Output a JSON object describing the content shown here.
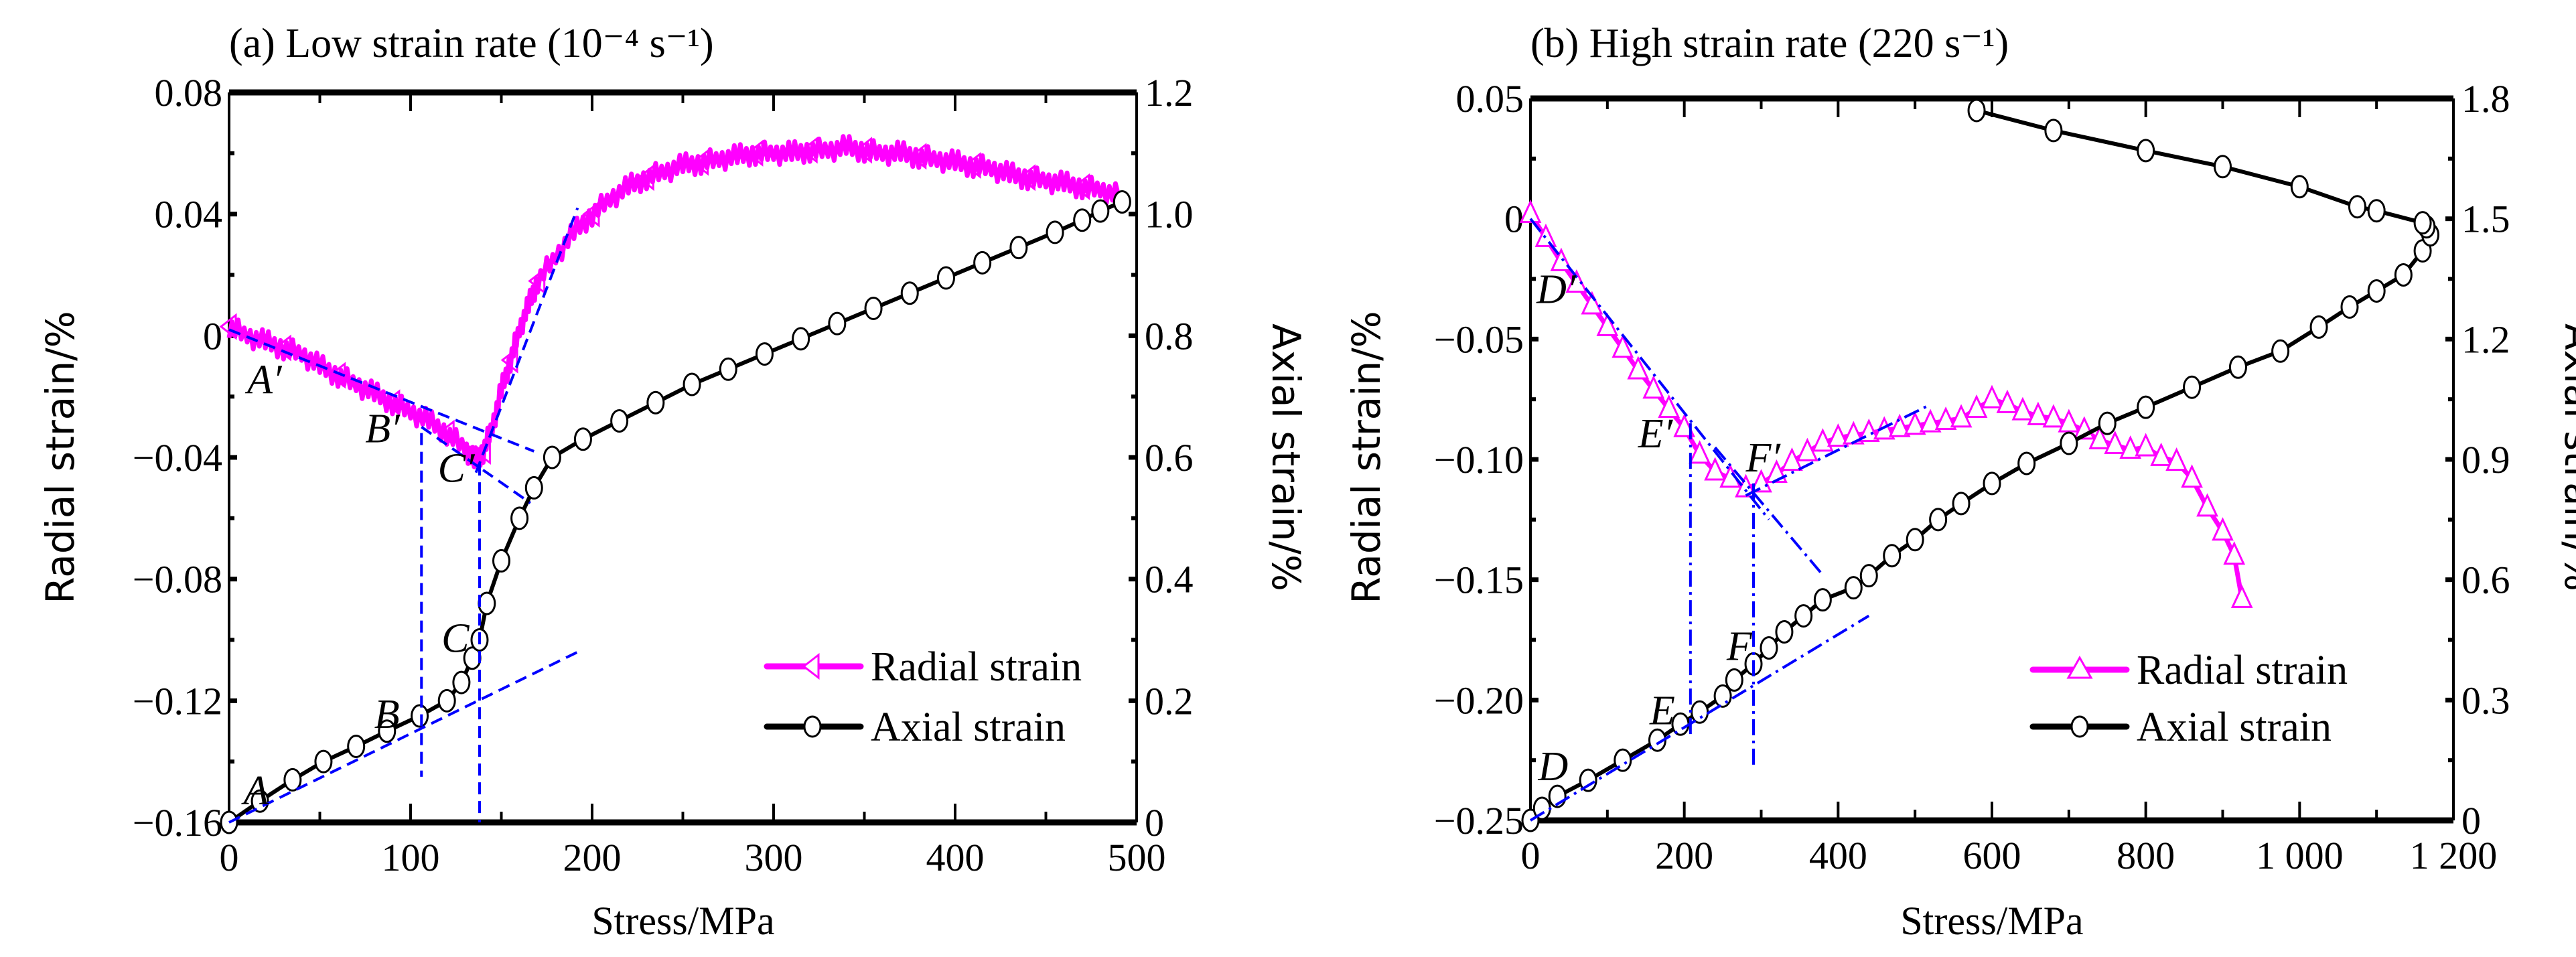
{
  "chart_data": [
    {
      "type": "line",
      "panel": "a",
      "title": "(a)  Low strain rate (10⁻⁴ s⁻¹)",
      "xlabel": "Stress/MPa",
      "ylabel": "Radial strain/%",
      "y2label": "Axial strain/%",
      "xlim": [
        0,
        500
      ],
      "ylim": [
        -0.16,
        0.08
      ],
      "y2lim": [
        0,
        1.2
      ],
      "xticks": [
        0,
        100,
        200,
        300,
        400,
        500
      ],
      "xtick_labels": [
        "0",
        "100",
        "200",
        "300",
        "400",
        "500"
      ],
      "yticks": [
        -0.16,
        -0.12,
        -0.08,
        -0.04,
        0,
        0.04,
        0.08
      ],
      "ytick_labels": [
        "−0.16",
        "−0.12",
        "−0.08",
        "−0.04",
        "0",
        "0.04",
        "0.08"
      ],
      "y2ticks": [
        0,
        0.2,
        0.4,
        0.6,
        0.8,
        1.0,
        1.2
      ],
      "y2tick_labels": [
        "0",
        "0.2",
        "0.4",
        "0.6",
        "0.8",
        "1.0",
        "1.2"
      ],
      "grid": false,
      "legend_position": "bottom-right",
      "series": [
        {
          "name": "Radial strain",
          "axis": "left",
          "color": "#ff00ff",
          "marker": "triangle-left",
          "x": [
            0,
            10,
            20,
            30,
            40,
            50,
            60,
            70,
            80,
            90,
            100,
            110,
            120,
            130,
            135,
            140,
            145,
            150,
            155,
            160,
            165,
            170,
            180,
            190,
            200,
            210,
            220,
            230,
            240,
            250,
            260,
            270,
            280,
            290,
            300,
            310,
            320,
            330,
            340,
            350,
            360,
            370,
            380,
            390,
            400,
            410,
            420,
            430,
            440,
            450,
            460,
            470,
            480,
            490
          ],
          "y": [
            0.003,
            0.0,
            -0.002,
            -0.004,
            -0.006,
            -0.01,
            -0.013,
            -0.016,
            -0.019,
            -0.022,
            -0.025,
            -0.028,
            -0.032,
            -0.037,
            -0.041,
            -0.038,
            -0.03,
            -0.018,
            -0.008,
            0.002,
            0.01,
            0.018,
            0.026,
            0.034,
            0.04,
            0.045,
            0.049,
            0.052,
            0.054,
            0.056,
            0.057,
            0.058,
            0.059,
            0.06,
            0.06,
            0.06,
            0.061,
            0.061,
            0.062,
            0.061,
            0.06,
            0.06,
            0.059,
            0.058,
            0.057,
            0.056,
            0.055,
            0.053,
            0.052,
            0.051,
            0.05,
            0.049,
            0.048,
            0.046
          ]
        },
        {
          "name": "Axial strain",
          "axis": "right",
          "color": "#000000",
          "marker": "circle-open",
          "x": [
            0,
            17,
            35,
            52,
            70,
            87,
            105,
            120,
            128,
            134,
            138,
            142,
            150,
            160,
            168,
            178,
            195,
            215,
            235,
            255,
            275,
            295,
            315,
            335,
            355,
            375,
            395,
            415,
            435,
            455,
            470,
            480,
            492
          ],
          "y": [
            0.0,
            0.035,
            0.07,
            0.1,
            0.125,
            0.15,
            0.175,
            0.2,
            0.23,
            0.27,
            0.3,
            0.36,
            0.43,
            0.5,
            0.55,
            0.6,
            0.63,
            0.66,
            0.69,
            0.72,
            0.745,
            0.77,
            0.795,
            0.82,
            0.845,
            0.87,
            0.895,
            0.92,
            0.945,
            0.97,
            0.99,
            1.005,
            1.02
          ]
        }
      ],
      "guide_lines": [
        {
          "style": "dashed",
          "color": "#0000ff",
          "from": [
            0,
            0.002
          ],
          "to": [
            168,
            -0.038
          ],
          "axis": "left"
        },
        {
          "style": "dashed",
          "color": "#0000ff",
          "from": [
            106,
            -0.03
          ],
          "to": [
            166,
            -0.055
          ],
          "axis": "left"
        },
        {
          "style": "dashed",
          "color": "#0000ff",
          "from": [
            136,
            -0.045
          ],
          "to": [
            192,
            0.042
          ],
          "axis": "left"
        },
        {
          "style": "dashed",
          "color": "#0000ff",
          "from": [
            0,
            0.0
          ],
          "to": [
            192,
            0.28
          ],
          "axis": "right"
        },
        {
          "style": "dashed",
          "color": "#0000ff",
          "from": [
            106,
            -0.032
          ],
          "to": [
            106,
            -0.145
          ],
          "axis": "left"
        },
        {
          "style": "dashed",
          "color": "#0000ff",
          "from": [
            138,
            -0.042
          ],
          "to": [
            138,
            -0.16
          ],
          "axis": "left"
        }
      ],
      "annotations": [
        {
          "text": "A′",
          "x": 10,
          "y": -0.019,
          "axis": "left"
        },
        {
          "text": "B′",
          "x": 75,
          "y": -0.035,
          "axis": "left"
        },
        {
          "text": "C′",
          "x": 115,
          "y": -0.048,
          "axis": "left"
        },
        {
          "text": "A",
          "x": 8,
          "y": 0.03,
          "axis": "right"
        },
        {
          "text": "B",
          "x": 80,
          "y": 0.155,
          "axis": "right"
        },
        {
          "text": "C",
          "x": 117,
          "y": 0.28,
          "axis": "right"
        }
      ]
    },
    {
      "type": "line",
      "panel": "b",
      "title": "(b)  High strain rate (220 s⁻¹)",
      "xlabel": "Stress/MPa",
      "ylabel": "Radial strain/%",
      "y2label": "Axial strain/%",
      "xlim": [
        0,
        1200
      ],
      "ylim": [
        -0.25,
        0.05
      ],
      "y2lim": [
        0,
        1.8
      ],
      "xticks": [
        0,
        200,
        400,
        600,
        800,
        1000,
        1200
      ],
      "xtick_labels": [
        "0",
        "200",
        "400",
        "600",
        "800",
        "1 000",
        "1 200"
      ],
      "yticks": [
        -0.25,
        -0.2,
        -0.15,
        -0.1,
        -0.05,
        0,
        0.05
      ],
      "ytick_labels": [
        "−0.25",
        "−0.20",
        "−0.15",
        "−0.10",
        "−0.05",
        "0",
        "0.05"
      ],
      "y2ticks": [
        0,
        0.3,
        0.6,
        0.9,
        1.2,
        1.5,
        1.8
      ],
      "y2tick_labels": [
        "0",
        "0.3",
        "0.6",
        "0.9",
        "1.2",
        "1.5",
        "1.8"
      ],
      "grid": false,
      "legend_position": "bottom-right",
      "series": [
        {
          "name": "Radial strain",
          "axis": "left",
          "color": "#ff00ff",
          "marker": "triangle-up",
          "x": [
            0,
            20,
            40,
            60,
            80,
            100,
            120,
            140,
            160,
            180,
            200,
            220,
            240,
            260,
            280,
            300,
            320,
            340,
            360,
            380,
            400,
            420,
            440,
            460,
            480,
            500,
            520,
            540,
            560,
            580,
            600,
            620,
            640,
            660,
            680,
            700,
            720,
            740,
            760,
            780,
            800,
            820,
            840,
            860,
            880,
            900,
            915,
            925
          ],
          "y": [
            0.002,
            -0.008,
            -0.018,
            -0.027,
            -0.036,
            -0.045,
            -0.054,
            -0.063,
            -0.071,
            -0.079,
            -0.087,
            -0.098,
            -0.105,
            -0.108,
            -0.112,
            -0.11,
            -0.106,
            -0.101,
            -0.097,
            -0.093,
            -0.091,
            -0.09,
            -0.089,
            -0.088,
            -0.087,
            -0.086,
            -0.085,
            -0.084,
            -0.083,
            -0.079,
            -0.075,
            -0.077,
            -0.08,
            -0.082,
            -0.083,
            -0.085,
            -0.088,
            -0.092,
            -0.094,
            -0.096,
            -0.095,
            -0.099,
            -0.101,
            -0.108,
            -0.12,
            -0.13,
            -0.14,
            -0.158
          ]
        },
        {
          "name": "Axial strain",
          "axis": "right",
          "color": "#000000",
          "marker": "circle-open",
          "x": [
            0,
            15,
            35,
            75,
            120,
            165,
            195,
            220,
            250,
            265,
            290,
            310,
            330,
            355,
            380,
            420,
            440,
            470,
            500,
            530,
            560,
            600,
            645,
            700,
            750,
            800,
            860,
            920,
            975,
            1025,
            1065,
            1100,
            1135,
            1160,
            1170,
            1165,
            1160,
            1100,
            1075,
            1000,
            900,
            800,
            680,
            580
          ],
          "y": [
            0.0,
            0.03,
            0.06,
            0.1,
            0.15,
            0.2,
            0.24,
            0.27,
            0.31,
            0.35,
            0.39,
            0.43,
            0.47,
            0.51,
            0.55,
            0.58,
            0.61,
            0.66,
            0.7,
            0.75,
            0.79,
            0.84,
            0.89,
            0.94,
            0.99,
            1.03,
            1.08,
            1.13,
            1.17,
            1.23,
            1.28,
            1.32,
            1.36,
            1.42,
            1.46,
            1.48,
            1.49,
            1.52,
            1.53,
            1.58,
            1.63,
            1.67,
            1.72,
            1.77
          ]
        }
      ],
      "guide_lines": [
        {
          "style": "dash-dot",
          "color": "#0000ff",
          "from": [
            0,
            0.0
          ],
          "to": [
            310,
            -0.125
          ],
          "axis": "left"
        },
        {
          "style": "dash-dot",
          "color": "#0000ff",
          "from": [
            240,
            -0.095
          ],
          "to": [
            380,
            -0.148
          ],
          "axis": "left"
        },
        {
          "style": "dash-dot",
          "color": "#0000ff",
          "from": [
            280,
            -0.115
          ],
          "to": [
            515,
            -0.078
          ],
          "axis": "left"
        },
        {
          "style": "dash-dot",
          "color": "#0000ff",
          "from": [
            0,
            0.0
          ],
          "to": [
            440,
            0.51
          ],
          "axis": "right"
        },
        {
          "style": "dash-dot",
          "color": "#0000ff",
          "from": [
            208,
            -0.085
          ],
          "to": [
            208,
            -0.215
          ],
          "axis": "left"
        },
        {
          "style": "dash-dot",
          "color": "#0000ff",
          "from": [
            290,
            -0.11
          ],
          "to": [
            290,
            -0.228
          ],
          "axis": "left"
        }
      ],
      "annotations": [
        {
          "text": "D′",
          "x": 8,
          "y": -0.035,
          "axis": "left"
        },
        {
          "text": "E′",
          "x": 140,
          "y": -0.095,
          "axis": "left"
        },
        {
          "text": "F′",
          "x": 280,
          "y": -0.105,
          "axis": "left"
        },
        {
          "text": "D",
          "x": 10,
          "y": 0.1,
          "axis": "right"
        },
        {
          "text": "E",
          "x": 155,
          "y": 0.24,
          "axis": "right"
        },
        {
          "text": "F",
          "x": 255,
          "y": 0.4,
          "axis": "right"
        }
      ]
    }
  ]
}
